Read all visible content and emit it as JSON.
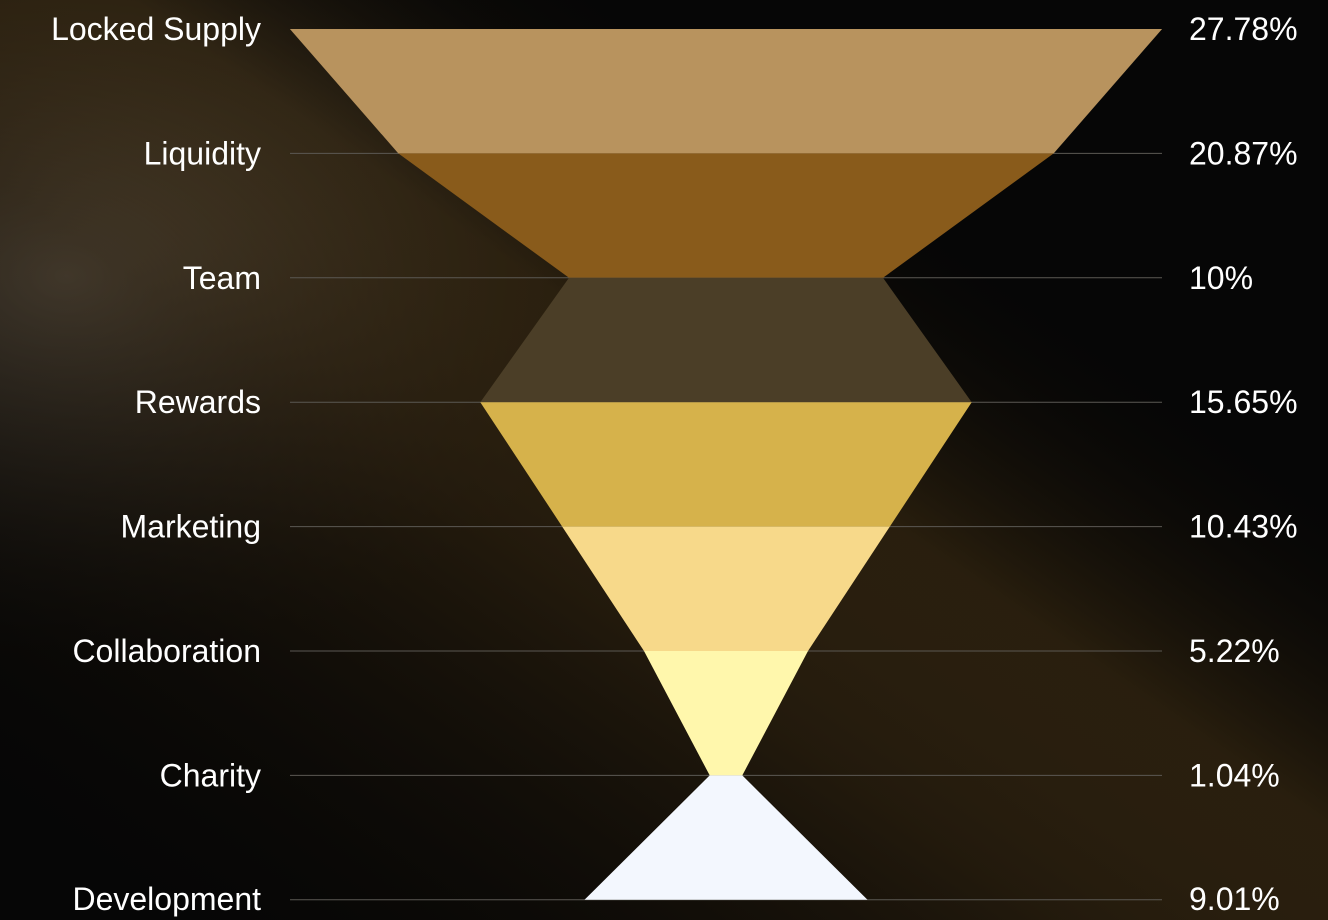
{
  "chart_data": {
    "type": "funnel",
    "categories": [
      "Locked Supply",
      "Liquidity",
      "Team",
      "Rewards",
      "Marketing",
      "Collaboration",
      "Charity",
      "Development"
    ],
    "values": [
      27.78,
      20.87,
      10,
      15.65,
      10.43,
      5.22,
      1.04,
      9.01
    ],
    "value_labels": [
      "27.78%",
      "20.87%",
      "10%",
      "15.65%",
      "10.43%",
      "5.22%",
      "1.04%",
      "9.01%"
    ],
    "colors": [
      "#B8935E",
      "#895B1B",
      "#4B3E27",
      "#D6B24B",
      "#F7D98A",
      "#FFF7AC",
      "#F3F7FE"
    ],
    "title": "",
    "xlabel": "",
    "ylabel": "",
    "grid": true
  }
}
